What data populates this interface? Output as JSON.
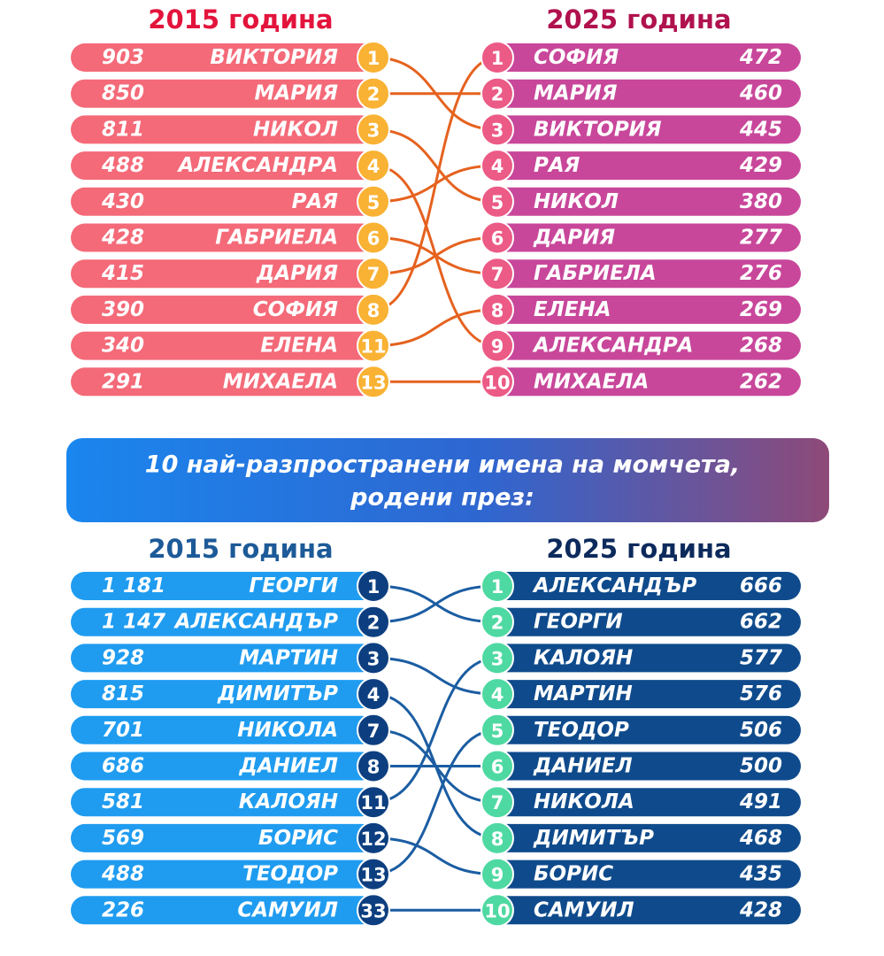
{
  "girls": {
    "left": {
      "title": "2015 година",
      "rows": [
        {
          "count": 903,
          "name": "ВИКТОРИЯ",
          "rank": 1
        },
        {
          "count": 850,
          "name": "МАРИЯ",
          "rank": 2
        },
        {
          "count": 811,
          "name": "НИКОЛ",
          "rank": 3
        },
        {
          "count": 488,
          "name": "АЛЕКСАНДРА",
          "rank": 4
        },
        {
          "count": 430,
          "name": "РАЯ",
          "rank": 5
        },
        {
          "count": 428,
          "name": "ГАБРИЕЛА",
          "rank": 6
        },
        {
          "count": 415,
          "name": "ДАРИЯ",
          "rank": 7
        },
        {
          "count": 390,
          "name": "СОФИЯ",
          "rank": 8
        },
        {
          "count": 340,
          "name": "ЕЛЕНА",
          "rank": 11
        },
        {
          "count": 291,
          "name": "МИХАЕЛА",
          "rank": 13
        }
      ]
    },
    "right": {
      "title": "2025 година",
      "rows": [
        {
          "rank": 1,
          "name": "СОФИЯ",
          "count": 472
        },
        {
          "rank": 2,
          "name": "МАРИЯ",
          "count": 460
        },
        {
          "rank": 3,
          "name": "ВИКТОРИЯ",
          "count": 445
        },
        {
          "rank": 4,
          "name": "РАЯ",
          "count": 429
        },
        {
          "rank": 5,
          "name": "НИКОЛ",
          "count": 380
        },
        {
          "rank": 6,
          "name": "ДАРИЯ",
          "count": 277
        },
        {
          "rank": 7,
          "name": "ГАБРИЕЛА",
          "count": 276
        },
        {
          "rank": 8,
          "name": "ЕЛЕНА",
          "count": 269
        },
        {
          "rank": 9,
          "name": "АЛЕКСАНДРА",
          "count": 268
        },
        {
          "rank": 10,
          "name": "МИХАЕЛА",
          "count": 262
        }
      ]
    }
  },
  "banner": {
    "lines": [
      "10 най-разпространени имена на момчета,",
      "родени през:"
    ]
  },
  "boys": {
    "left": {
      "title": "2015 година",
      "rows": [
        {
          "count": "1 181",
          "name": "ГЕОРГИ",
          "rank": 1
        },
        {
          "count": "1 147",
          "name": "АЛЕКСАНДЪР",
          "rank": 2
        },
        {
          "count": 928,
          "name": "МАРТИН",
          "rank": 3
        },
        {
          "count": 815,
          "name": "ДИМИТЪР",
          "rank": 4
        },
        {
          "count": 701,
          "name": "НИКОЛА",
          "rank": 7
        },
        {
          "count": 686,
          "name": "ДАНИЕЛ",
          "rank": 8
        },
        {
          "count": 581,
          "name": "КАЛОЯН",
          "rank": 11
        },
        {
          "count": 569,
          "name": "БОРИС",
          "rank": 12
        },
        {
          "count": 488,
          "name": "ТЕОДОР",
          "rank": 13
        },
        {
          "count": 226,
          "name": "САМУИЛ",
          "rank": 33
        }
      ]
    },
    "right": {
      "title": "2025 година",
      "rows": [
        {
          "rank": 1,
          "name": "АЛЕКСАНДЪР",
          "count": 666
        },
        {
          "rank": 2,
          "name": "ГЕОРГИ",
          "count": 662
        },
        {
          "rank": 3,
          "name": "КАЛОЯН",
          "count": 577
        },
        {
          "rank": 4,
          "name": "МАРТИН",
          "count": 576
        },
        {
          "rank": 5,
          "name": "ТЕОДОР",
          "count": 506
        },
        {
          "rank": 6,
          "name": "ДАНИЕЛ",
          "count": 500
        },
        {
          "rank": 7,
          "name": "НИКОЛА",
          "count": 491
        },
        {
          "rank": 8,
          "name": "ДИМИТЪР",
          "count": 468
        },
        {
          "rank": 9,
          "name": "БОРИС",
          "count": 435
        },
        {
          "rank": 10,
          "name": "САМУИЛ",
          "count": 428
        }
      ]
    }
  }
}
